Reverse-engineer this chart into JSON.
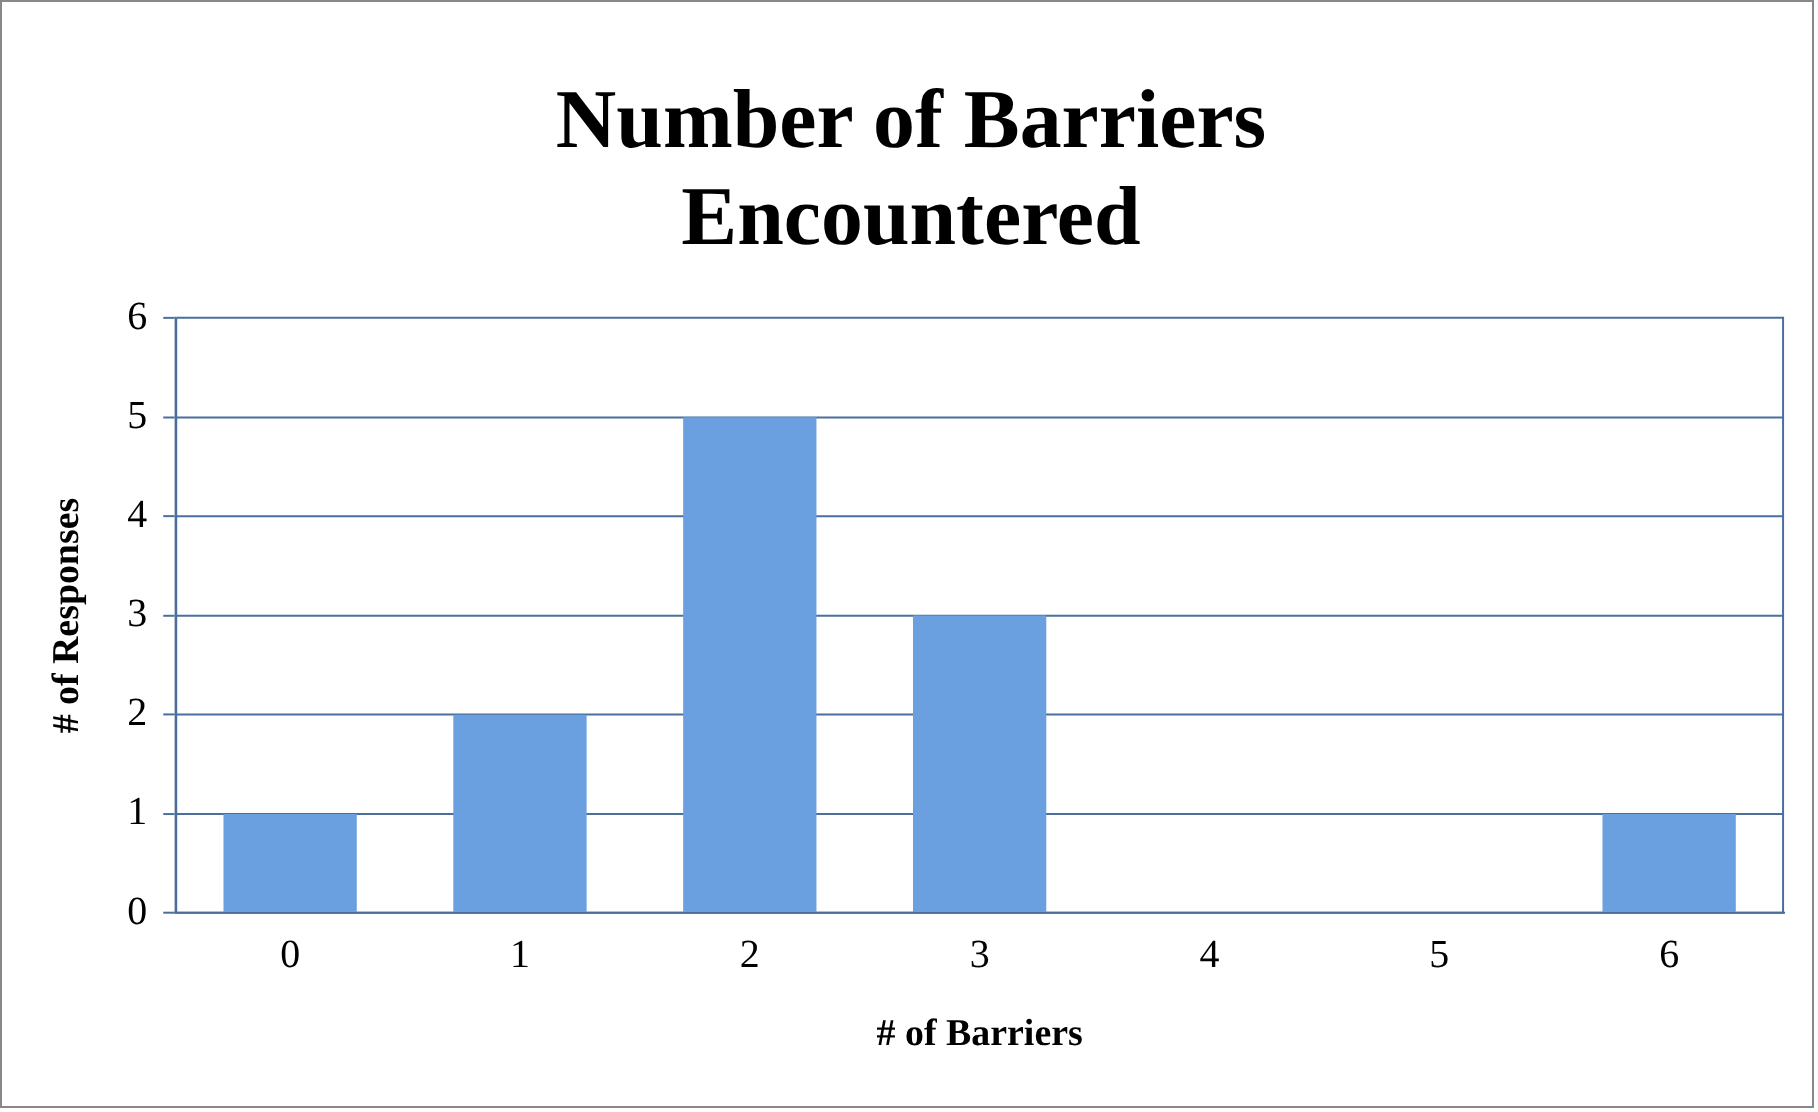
{
  "chart_data": {
    "type": "bar",
    "title": "Number of Barriers Encountered",
    "xlabel": "# of Barriers",
    "ylabel": "# of Responses",
    "categories": [
      "0",
      "1",
      "2",
      "3",
      "4",
      "5",
      "6"
    ],
    "values": [
      1,
      2,
      5,
      3,
      0,
      0,
      1
    ],
    "color": "#6a9fe0",
    "ylim": [
      0,
      6
    ],
    "yticks": [
      0,
      1,
      2,
      3,
      4,
      5,
      6
    ],
    "grid": "y",
    "legend": false
  }
}
